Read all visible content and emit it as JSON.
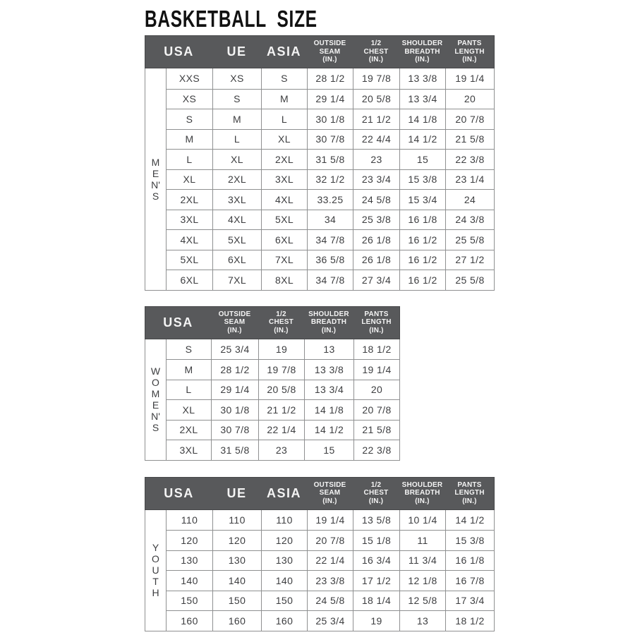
{
  "title": "BASKETBALL  SIZE",
  "colors": {
    "header_bg": "#58595b",
    "header_text": "#f4f4f4",
    "grid_border": "#8f9091",
    "cell_text": "#3d3e40",
    "title_color": "#111111"
  },
  "tables": [
    {
      "id": "mens",
      "group_label": "MEN'S",
      "group_letters": [
        "M",
        "E",
        "N'",
        "S"
      ],
      "columns": [
        {
          "label": "USA",
          "lines": [
            "USA"
          ],
          "large": true
        },
        {
          "label": "UE",
          "lines": [
            "UE"
          ],
          "large": true
        },
        {
          "label": "ASIA",
          "lines": [
            "ASIA"
          ],
          "large": true
        },
        {
          "label": "OUTSIDE SEAM (IN.)",
          "lines": [
            "OUTSIDE",
            "SEAM",
            "(IN.)"
          ],
          "large": false
        },
        {
          "label": "1/2 CHEST (IN.)",
          "lines": [
            "1/2",
            "CHEST",
            "(IN.)"
          ],
          "large": false
        },
        {
          "label": "SHOULDER BREADTH (IN.)",
          "lines": [
            "SHOULDER",
            "BREADTH",
            "(IN.)"
          ],
          "large": false
        },
        {
          "label": "PANTS LENGTH (IN.)",
          "lines": [
            "PANTS",
            "LENGTH",
            "(IN.)"
          ],
          "large": false
        }
      ],
      "rows": [
        [
          "XXS",
          "XS",
          "S",
          "28 1/2",
          "19 7/8",
          "13 3/8",
          "19 1/4"
        ],
        [
          "XS",
          "S",
          "M",
          "29 1/4",
          "20 5/8",
          "13 3/4",
          "20"
        ],
        [
          "S",
          "M",
          "L",
          "30 1/8",
          "21 1/2",
          "14 1/8",
          "20 7/8"
        ],
        [
          "M",
          "L",
          "XL",
          "30 7/8",
          "22 4/4",
          "14 1/2",
          "21 5/8"
        ],
        [
          "L",
          "XL",
          "2XL",
          "31 5/8",
          "23",
          "15",
          "22 3/8"
        ],
        [
          "XL",
          "2XL",
          "3XL",
          "32 1/2",
          "23 3/4",
          "15 3/8",
          "23 1/4"
        ],
        [
          "2XL",
          "3XL",
          "4XL",
          "33.25",
          "24 5/8",
          "15 3/4",
          "24"
        ],
        [
          "3XL",
          "4XL",
          "5XL",
          "34",
          "25 3/8",
          "16 1/8",
          "24 3/8"
        ],
        [
          "4XL",
          "5XL",
          "6XL",
          "34 7/8",
          "26 1/8",
          "16 1/2",
          "25 5/8"
        ],
        [
          "5XL",
          "6XL",
          "7XL",
          "36 5/8",
          "26 1/8",
          "16 1/2",
          "27 1/2"
        ],
        [
          "6XL",
          "7XL",
          "8XL",
          "34 7/8",
          "27 3/4",
          "16 1/2",
          "25 5/8"
        ]
      ]
    },
    {
      "id": "womens",
      "group_label": "WOMEN'S",
      "group_letters": [
        "W",
        "O",
        "M",
        "E",
        "N'",
        "S"
      ],
      "columns": [
        {
          "label": "USA",
          "lines": [
            "USA"
          ],
          "large": true
        },
        {
          "label": "OUTSIDE SEAM (IN.)",
          "lines": [
            "OUTSIDE",
            "SEAM",
            "(IN.)"
          ],
          "large": false
        },
        {
          "label": "1/2 CHEST (IN.)",
          "lines": [
            "1/2",
            "CHEST",
            "(IN.)"
          ],
          "large": false
        },
        {
          "label": "SHOULDER BREADTH (IN.)",
          "lines": [
            "SHOULDER",
            "BREADTH",
            "(IN.)"
          ],
          "large": false
        },
        {
          "label": "PANTS LENGTH (IN.)",
          "lines": [
            "PANTS",
            "LENGTH",
            "(IN.)"
          ],
          "large": false
        }
      ],
      "rows": [
        [
          "S",
          "25 3/4",
          "19",
          "13",
          "18 1/2"
        ],
        [
          "M",
          "28 1/2",
          "19 7/8",
          "13 3/8",
          "19 1/4"
        ],
        [
          "L",
          "29 1/4",
          "20 5/8",
          "13 3/4",
          "20"
        ],
        [
          "XL",
          "30 1/8",
          "21 1/2",
          "14 1/8",
          "20 7/8"
        ],
        [
          "2XL",
          "30 7/8",
          "22 1/4",
          "14 1/2",
          "21 5/8"
        ],
        [
          "3XL",
          "31 5/8",
          "23",
          "15",
          "22 3/8"
        ]
      ]
    },
    {
      "id": "youth",
      "group_label": "YOUTH",
      "group_letters": [
        "Y",
        "O",
        "U",
        "T",
        "H"
      ],
      "columns": [
        {
          "label": "USA",
          "lines": [
            "USA"
          ],
          "large": true
        },
        {
          "label": "UE",
          "lines": [
            "UE"
          ],
          "large": true
        },
        {
          "label": "ASIA",
          "lines": [
            "ASIA"
          ],
          "large": true
        },
        {
          "label": "OUTSIDE SEAM (IN.)",
          "lines": [
            "OUTSIDE",
            "SEAM",
            "(IN.)"
          ],
          "large": false
        },
        {
          "label": "1/2 CHEST (IN.)",
          "lines": [
            "1/2",
            "CHEST",
            "(IN.)"
          ],
          "large": false
        },
        {
          "label": "SHOULDER BREADTH (IN.)",
          "lines": [
            "SHOULDER",
            "BREADTH",
            "(IN.)"
          ],
          "large": false
        },
        {
          "label": "PANTS LENGTH (IN.)",
          "lines": [
            "PANTS",
            "LENGTH",
            "(IN.)"
          ],
          "large": false
        }
      ],
      "rows": [
        [
          "110",
          "110",
          "110",
          "19 1/4",
          "13 5/8",
          "10 1/4",
          "14 1/2"
        ],
        [
          "120",
          "120",
          "120",
          "20 7/8",
          "15 1/8",
          "11",
          "15 3/8"
        ],
        [
          "130",
          "130",
          "130",
          "22 1/4",
          "16 3/4",
          "11 3/4",
          "16 1/8"
        ],
        [
          "140",
          "140",
          "140",
          "23 3/8",
          "17 1/2",
          "12 1/8",
          "16 7/8"
        ],
        [
          "150",
          "150",
          "150",
          "24 5/8",
          "18 1/4",
          "12 5/8",
          "17 3/4"
        ],
        [
          "160",
          "160",
          "160",
          "25 3/4",
          "19",
          "13",
          "18 1/2"
        ]
      ]
    }
  ]
}
